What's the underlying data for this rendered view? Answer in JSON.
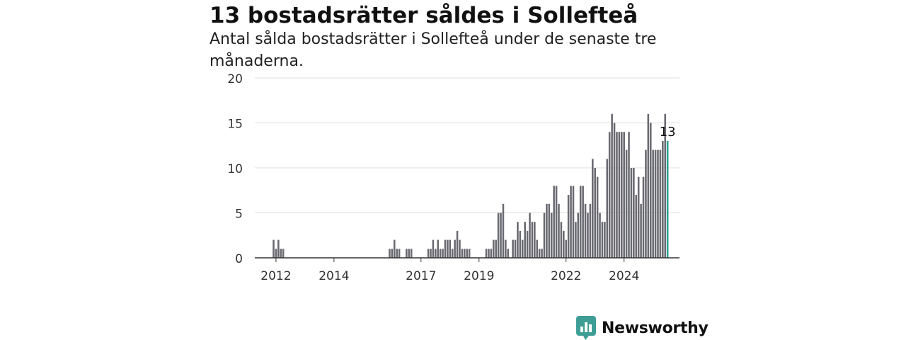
{
  "chart_data": {
    "type": "bar",
    "title": "13 bostadsrätter såldes i Sollefteå",
    "subtitle": "Antal sålda bostadsrätter i Sollefteå under de senaste tre månaderna.",
    "xlabel": "",
    "ylabel": "",
    "ylim": [
      0,
      20
    ],
    "yticks": [
      0,
      5,
      10,
      15,
      20
    ],
    "xticks": [
      "2012",
      "2014",
      "2017",
      "2019",
      "2022",
      "2024"
    ],
    "grid": true,
    "legend": "none",
    "start_month": "2011-12",
    "values": [
      2,
      1,
      2,
      1,
      1,
      0,
      0,
      0,
      0,
      0,
      0,
      0,
      0,
      0,
      0,
      0,
      0,
      0,
      0,
      0,
      0,
      0,
      0,
      0,
      0,
      0,
      0,
      0,
      0,
      0,
      0,
      0,
      0,
      0,
      0,
      0,
      0,
      0,
      0,
      0,
      0,
      0,
      0,
      0,
      0,
      0,
      0,
      0,
      1,
      1,
      2,
      1,
      1,
      0,
      0,
      1,
      1,
      1,
      0,
      0,
      0,
      0,
      0,
      0,
      1,
      1,
      2,
      1,
      2,
      1,
      1,
      2,
      2,
      2,
      1,
      2,
      3,
      2,
      1,
      1,
      1,
      1,
      0,
      0,
      0,
      0,
      0,
      0,
      1,
      1,
      1,
      2,
      2,
      5,
      5,
      6,
      2,
      1,
      0,
      2,
      2,
      4,
      3,
      2,
      4,
      3,
      5,
      4,
      4,
      2,
      1,
      1,
      5,
      6,
      6,
      5,
      8,
      8,
      6,
      4,
      3,
      2,
      7,
      8,
      8,
      4,
      5,
      8,
      8,
      6,
      5,
      6,
      11,
      10,
      9,
      5,
      4,
      4,
      11,
      14,
      16,
      15,
      14,
      14,
      14,
      14,
      12,
      14,
      10,
      10,
      7,
      9,
      6,
      9,
      12,
      16,
      15,
      12,
      12,
      12,
      12,
      13,
      16,
      13
    ],
    "highlight": {
      "value": 13,
      "label": "13",
      "color": "#2a9d8f"
    },
    "bar_color": "#6b6b73"
  },
  "colors": {
    "brand_primary": "#3e9e96",
    "brand_dark": "#2a7a73"
  },
  "branding": {
    "logo_text": "Newsworthy",
    "icon": "newsworthy-bar-icon"
  }
}
